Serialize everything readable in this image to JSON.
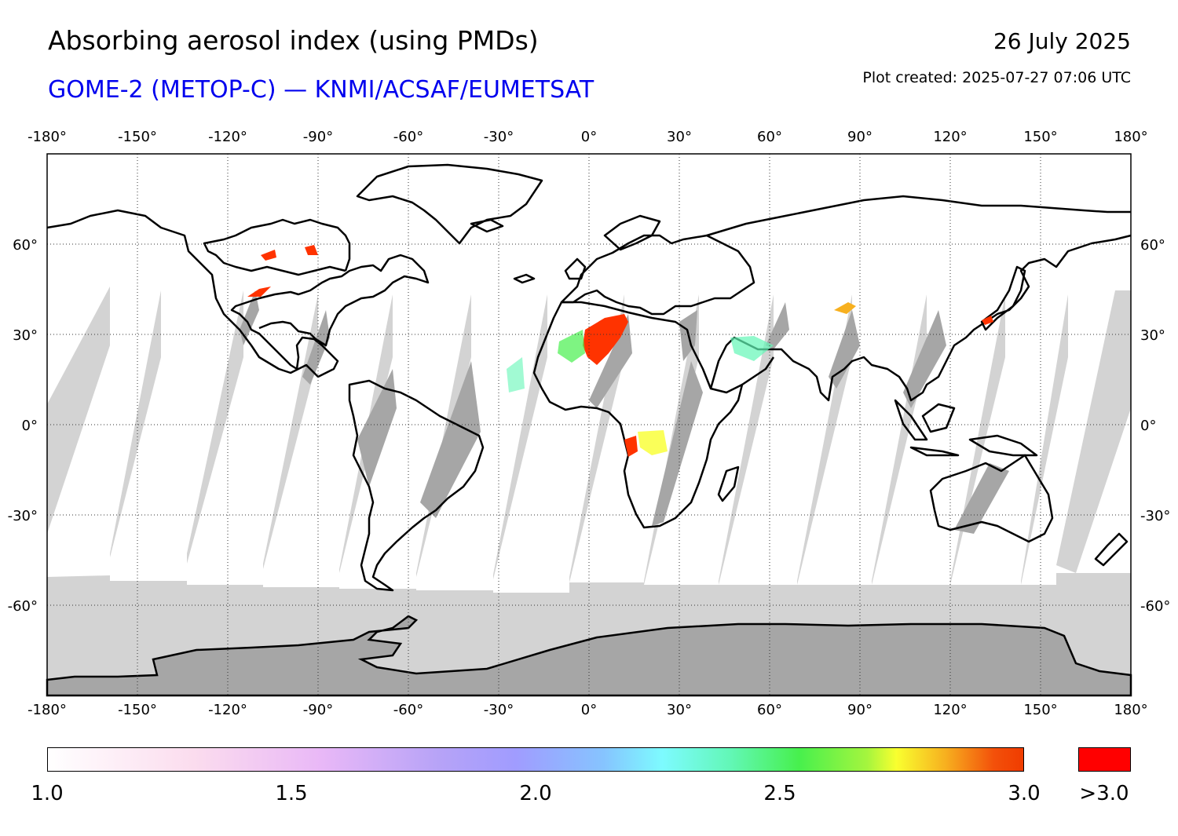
{
  "header": {
    "title": "Absorbing aerosol index (using PMDs)",
    "subtitle": "GOME-2 (METOP-C) — KNMI/ACSAF/EUMETSAT",
    "date": "26 July 2025",
    "created": "Plot created: 2025-07-27 07:06 UTC"
  },
  "map": {
    "lon_labels": [
      "-180°",
      "-150°",
      "-120°",
      "-90°",
      "-60°",
      "-30°",
      "0°",
      "30°",
      "60°",
      "90°",
      "120°",
      "150°",
      "180°"
    ],
    "lon_values": [
      -180,
      -150,
      -120,
      -90,
      -60,
      -30,
      0,
      30,
      60,
      90,
      120,
      150,
      180
    ],
    "lat_labels": [
      "60°",
      "30°",
      "0°",
      "-30°",
      "-60°"
    ],
    "lat_values": [
      60,
      30,
      0,
      -30,
      -60
    ],
    "lon_range": [
      -180,
      180
    ],
    "lat_range": [
      -90,
      90
    ],
    "grid": "dotted",
    "colors": {
      "land_outline": "#000000",
      "no_data_light": "#d3d3d3",
      "no_data_dark": "#a6a6a6",
      "high_aerosol": "#ff2200"
    }
  },
  "colorbar": {
    "tick_labels": [
      "1.0",
      "1.5",
      "2.0",
      "2.5",
      "3.0"
    ],
    "tick_values": [
      1.0,
      1.5,
      2.0,
      2.5,
      3.0
    ],
    "overflow_label": ">3.0",
    "overflow_color": "#ff0000",
    "range": [
      1.0,
      3.0
    ]
  }
}
